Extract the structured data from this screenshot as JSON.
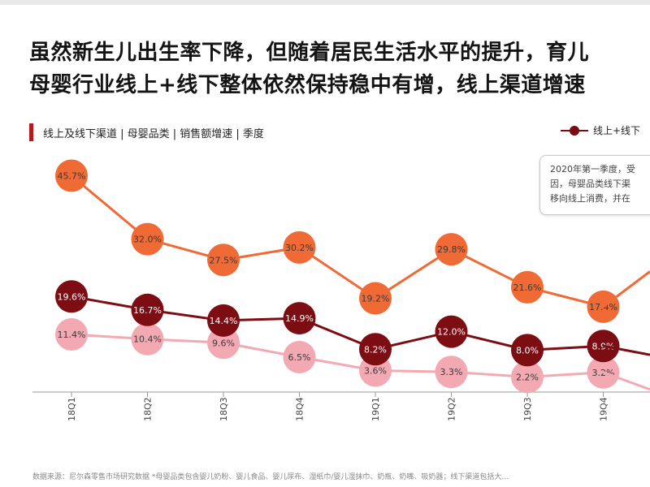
{
  "headline": {
    "line1": "虽然新生儿出生率下降，但随着居民生活水平的提升，育儿",
    "line2": "母婴行业线上+线下整体依然保持稳中有增，线上渠道增速"
  },
  "subtitle": "线上及线下渠道 | 母婴品类 | 销售额增速 | 季度",
  "legend": {
    "label": "线上+线下"
  },
  "note": {
    "line1": "2020年第一季度，受",
    "line2": "因，母婴品类线下渠",
    "line3": "移向线上消费，并在"
  },
  "source": "数据来源：尼尔森零售市场研究数据  *母婴品类包含婴儿奶粉、婴儿食品、婴儿尿布、湿纸巾/婴儿湿抹巾、奶瓶、奶嘴、吸奶器；线下渠道包括大…",
  "colors": {
    "online": "#ef6a35",
    "total": "#7b0d13",
    "offline": "#f3a9b2",
    "accent": "#b11b1b"
  },
  "chart_data": {
    "type": "line",
    "categories": [
      "18Q1",
      "18Q2",
      "18Q3",
      "18Q4",
      "19Q1",
      "19Q2",
      "19Q3",
      "19Q4"
    ],
    "series": [
      {
        "values": [
          45.7,
          32.0,
          27.5,
          30.2,
          19.2,
          29.8,
          21.6,
          17.4
        ],
        "labels": [
          "45.7%",
          "32.0%",
          "27.5%",
          "30.2%",
          "19.2%",
          "29.8%",
          "21.6%",
          "17.4%"
        ],
        "color": "#ef6a35"
      },
      {
        "name": "线上+线下",
        "values": [
          19.6,
          16.7,
          14.4,
          14.9,
          8.2,
          12.0,
          8.0,
          8.9
        ],
        "labels": [
          "19.6%",
          "16.7%",
          "14.4%",
          "14.9%",
          "8.2%",
          "12.0%",
          "8.0%",
          "8.9%"
        ],
        "color": "#7b0d13"
      },
      {
        "values": [
          11.4,
          10.4,
          9.6,
          6.5,
          3.6,
          3.3,
          2.2,
          3.2
        ],
        "labels": [
          "11.4%",
          "10.4%",
          "9.6%",
          "6.5%",
          "3.6%",
          "3.3%",
          "2.2%",
          "3.2%"
        ],
        "color": "#f3a9b2"
      }
    ],
    "grid": false,
    "legend_position": "top-right"
  }
}
